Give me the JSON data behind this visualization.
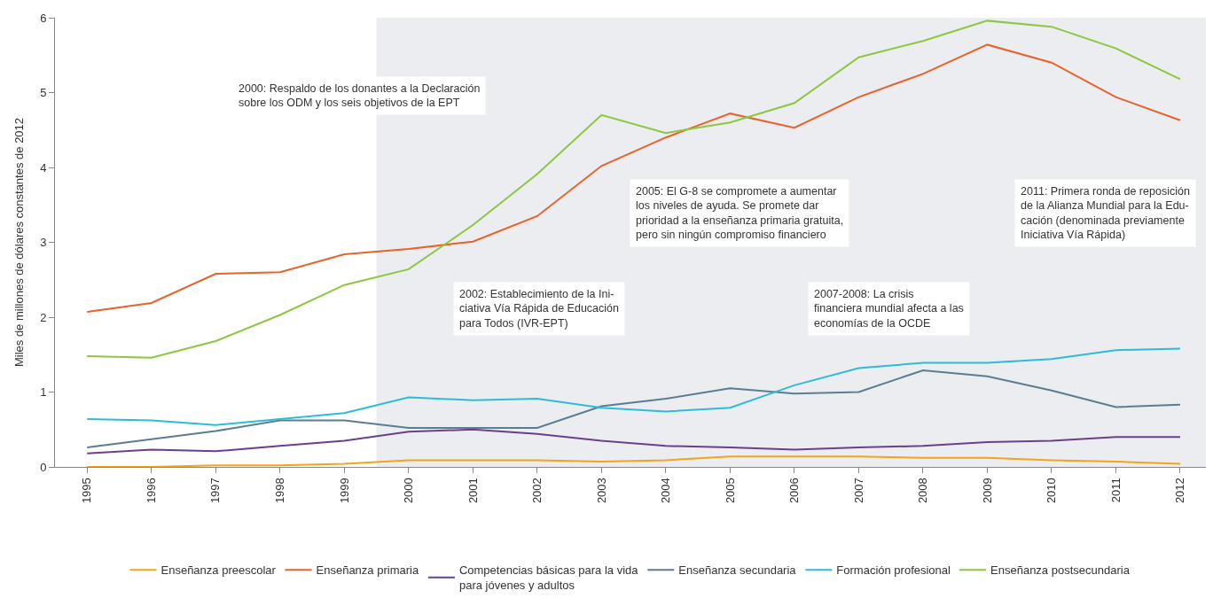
{
  "chart_data": {
    "type": "line",
    "ylabel": "Miles de millones de dólares constantes de 2012",
    "x": [
      1995,
      1996,
      1997,
      1998,
      1999,
      2000,
      2001,
      2002,
      2003,
      2004,
      2005,
      2006,
      2007,
      2008,
      2009,
      2010,
      2011,
      2012
    ],
    "xlim": [
      1994.5,
      2012.4
    ],
    "xticks": [
      1995,
      1996,
      1997,
      1998,
      1999,
      2000,
      2001,
      2002,
      2003,
      2004,
      2005,
      2006,
      2007,
      2008,
      2009,
      2010,
      2011,
      2012
    ],
    "ylim": [
      0,
      6
    ],
    "yticks": [
      0,
      1,
      2,
      3,
      4,
      5,
      6
    ],
    "grid": false,
    "legend": "bottom",
    "marker": "none",
    "line_style": "solid",
    "series": [
      {
        "name": "Enseñanza preescolar",
        "color": "#f5a31c",
        "values": [
          0.0,
          0.0,
          0.02,
          0.02,
          0.04,
          0.09,
          0.09,
          0.09,
          0.07,
          0.09,
          0.14,
          0.14,
          0.14,
          0.12,
          0.12,
          0.09,
          0.07,
          0.04
        ]
      },
      {
        "name": "Enseñanza primaria",
        "color": "#e8622a",
        "values": [
          2.07,
          2.19,
          2.58,
          2.6,
          2.84,
          2.91,
          3.01,
          3.35,
          4.02,
          4.4,
          4.72,
          4.53,
          4.94,
          5.25,
          5.64,
          5.4,
          4.94,
          4.63
        ]
      },
      {
        "name": "Competencias básicas para la vida\npara jóvenes y adultos",
        "color": "#6c3f8e",
        "values": [
          0.18,
          0.23,
          0.21,
          0.28,
          0.35,
          0.47,
          0.5,
          0.44,
          0.35,
          0.28,
          0.26,
          0.23,
          0.26,
          0.28,
          0.33,
          0.35,
          0.4,
          0.4
        ]
      },
      {
        "name": "Enseñanza secundaria",
        "color": "#5b7d92",
        "values": [
          0.26,
          0.37,
          0.48,
          0.62,
          0.62,
          0.52,
          0.52,
          0.52,
          0.81,
          0.91,
          1.05,
          0.98,
          1.0,
          1.29,
          1.21,
          1.02,
          0.8,
          0.83
        ]
      },
      {
        "name": "Formación profesional",
        "color": "#2bbcd8",
        "values": [
          0.64,
          0.62,
          0.56,
          0.64,
          0.72,
          0.93,
          0.89,
          0.91,
          0.79,
          0.74,
          0.79,
          1.09,
          1.32,
          1.39,
          1.39,
          1.44,
          1.56,
          1.58
        ]
      },
      {
        "name": "Enseñanza postsecundaria",
        "color": "#8dc63f",
        "values": [
          1.48,
          1.46,
          1.68,
          2.03,
          2.43,
          2.64,
          3.23,
          3.91,
          4.7,
          4.46,
          4.6,
          4.86,
          5.47,
          5.69,
          5.96,
          5.88,
          5.59,
          5.18
        ]
      }
    ],
    "bands": [
      {
        "axis": "x",
        "from": 1999.5,
        "to": 2012.4,
        "color": "#ebedf0"
      }
    ],
    "annotations": [
      "2000: Respaldo de los donantes a la Declaración\nsobre los ODM y los seis objetivos de la EPT",
      "2002: Establecimiento de la Ini-\nciativa Vía Rápida de Educación\npara Todos (IVR-EPT)",
      "2005: El G-8 se compromete a aumentar\nlos niveles de ayuda. Se promete dar\nprioridad a la enseñanza primaria gratuita,\npero sin ningún compromiso financiero",
      "2007-2008: La crisis\nfinanciera mundial afecta a las\neconomías de la OCDE",
      "2011: Primera ronda de reposición\nde la Alianza Mundial para la Edu-\ncación (denominada previamente\nIniciativa Vía Rápida)"
    ]
  }
}
